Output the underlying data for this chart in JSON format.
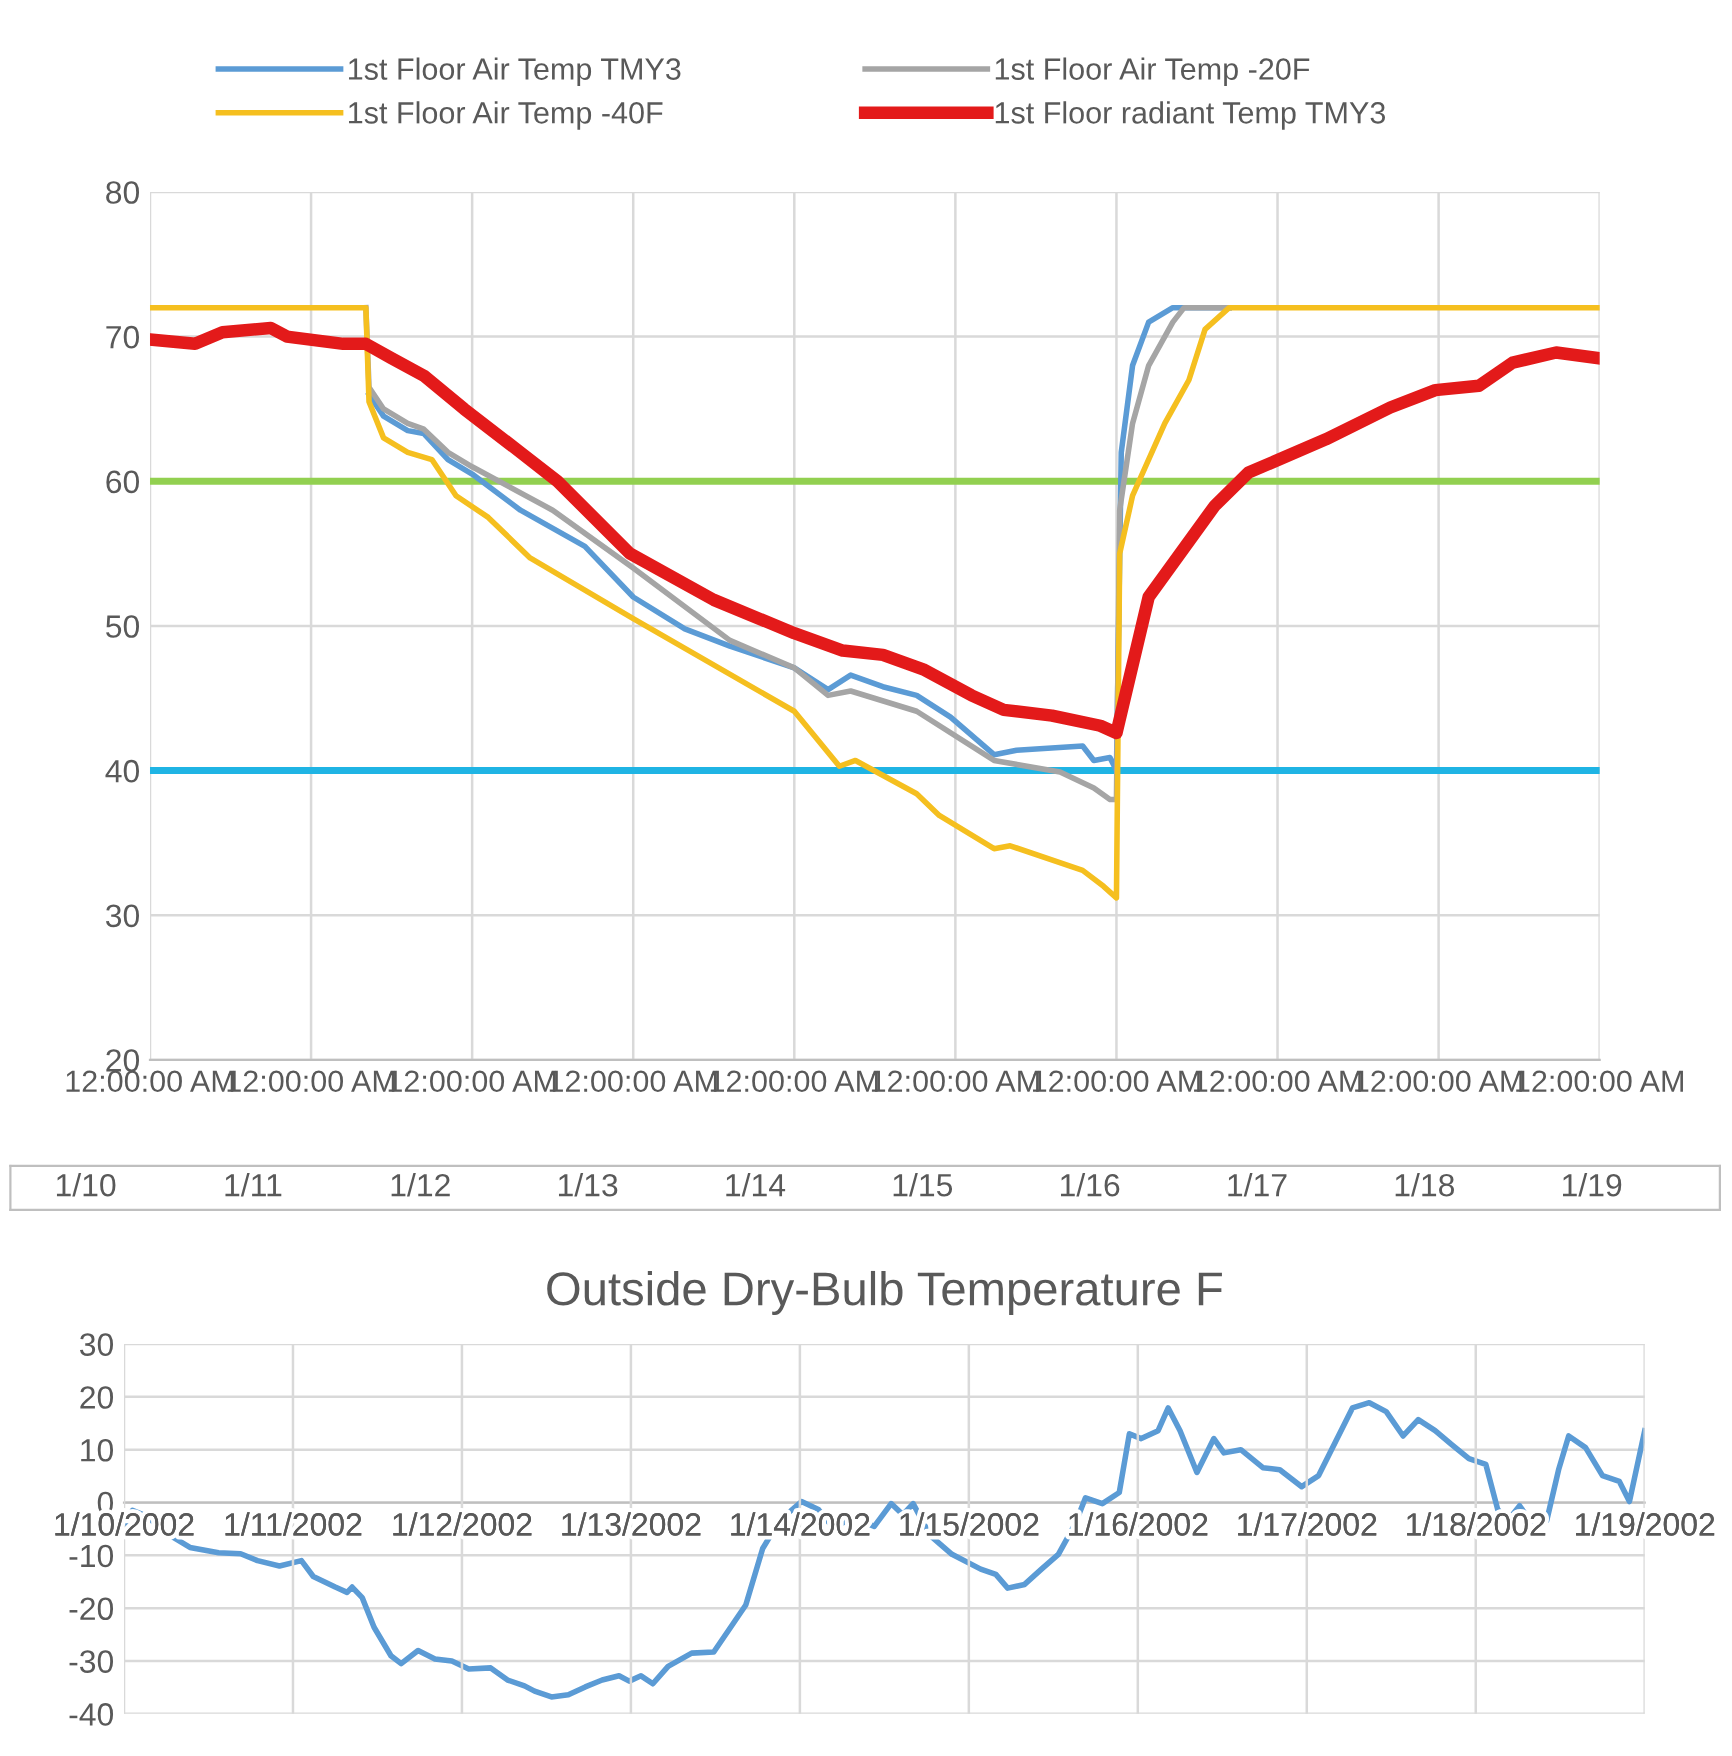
{
  "chart_data": [
    {
      "type": "line",
      "xlim": [
        "2002-01-10T00:00",
        "2002-01-19T00:00"
      ],
      "xticks": [
        {
          "value": "2002-01-10T00:00",
          "label": "12:00:00 AM"
        },
        {
          "value": "2002-01-11T00:00",
          "label": "12:00:00 AM"
        },
        {
          "value": "2002-01-12T00:00",
          "label": "12:00:00 AM"
        },
        {
          "value": "2002-01-13T00:00",
          "label": "12:00:00 AM"
        },
        {
          "value": "2002-01-14T00:00",
          "label": "12:00:00 AM"
        },
        {
          "value": "2002-01-15T00:00",
          "label": "12:00:00 AM"
        },
        {
          "value": "2002-01-16T00:00",
          "label": "12:00:00 AM"
        },
        {
          "value": "2002-01-17T00:00",
          "label": "12:00:00 AM"
        },
        {
          "value": "2002-01-18T00:00",
          "label": "12:00:00 AM"
        },
        {
          "value": "2002-01-19T00:00",
          "label": "12:00:00 AM"
        }
      ],
      "ylim": [
        20,
        80
      ],
      "yticks": [
        20,
        30,
        40,
        50,
        60,
        70,
        80
      ],
      "grid": true,
      "legend": "top",
      "ref_lines": [
        {
          "axis": "y",
          "value": 60,
          "color": "#92d050"
        },
        {
          "axis": "y",
          "value": 40,
          "color": "#1fb4e4"
        }
      ],
      "series": [
        {
          "name": "1st Floor Air Temp TMY3",
          "color": "#5b9bd5",
          "x": [
            "2002-01-11T08:38",
            "2002-01-11T10:48",
            "2002-01-11T14:24",
            "2002-01-11T16:48",
            "2002-01-11T20:24",
            "2002-01-12T00:00",
            "2002-01-12T07:12",
            "2002-01-12T16:48",
            "2002-01-13T00:00",
            "2002-01-13T07:41",
            "2002-01-13T14:24",
            "2002-01-14T00:00",
            "2002-01-14T05:02",
            "2002-01-14T08:24",
            "2002-01-14T13:12",
            "2002-01-14T18:14",
            "2002-01-14T23:17",
            "2002-01-15T05:46",
            "2002-01-15T09:07",
            "2002-01-15T18:58",
            "2002-01-15T20:38",
            "2002-01-15T23:02",
            "2002-01-16T00:00",
            "2002-01-16T00:43",
            "2002-01-16T02:24",
            "2002-01-16T04:48",
            "2002-01-16T08:24",
            "2002-01-16T16:48"
          ],
          "values": [
            66,
            64.5,
            63.5,
            63.3,
            61.5,
            60.5,
            58,
            55.5,
            52,
            49.8,
            48.6,
            47.1,
            45.6,
            46.6,
            45.8,
            45.2,
            43.7,
            41.1,
            41.4,
            41.7,
            40.7,
            40.9,
            40,
            62,
            68,
            71,
            72,
            72
          ]
        },
        {
          "name": "1st Floor Air Temp -20F",
          "color": "#a5a5a5",
          "x": [
            "2002-01-11T08:10",
            "2002-01-11T08:38",
            "2002-01-11T10:48",
            "2002-01-11T14:24",
            "2002-01-11T16:48",
            "2002-01-11T20:24",
            "2002-01-12T00:00",
            "2002-01-12T12:00",
            "2002-01-13T00:00",
            "2002-01-13T14:24",
            "2002-01-14T00:00",
            "2002-01-14T05:02",
            "2002-01-14T08:24",
            "2002-01-14T18:14",
            "2002-01-15T05:46",
            "2002-01-15T15:36",
            "2002-01-15T20:38",
            "2002-01-15T23:02",
            "2002-01-16T00:00",
            "2002-01-16T00:29",
            "2002-01-16T02:24",
            "2002-01-16T04:48",
            "2002-01-16T08:24",
            "2002-01-16T10:05",
            "2002-01-16T16:48"
          ],
          "values": [
            72,
            66.5,
            65,
            64,
            63.6,
            62,
            61,
            58,
            54,
            49,
            47.1,
            45.2,
            45.5,
            44.1,
            40.7,
            39.9,
            38.8,
            38,
            38,
            58,
            64,
            68,
            71,
            72,
            72
          ]
        },
        {
          "name": "1st Floor Air Temp -40F",
          "color": "#f5bf1f",
          "x": [
            "2002-01-10T00:00",
            "2002-01-11T08:10",
            "2002-01-11T08:38",
            "2002-01-11T10:48",
            "2002-01-11T14:24",
            "2002-01-11T18:00",
            "2002-01-11T21:36",
            "2002-01-12T02:24",
            "2002-01-12T08:38",
            "2002-01-13T00:00",
            "2002-01-14T00:00",
            "2002-01-14T06:43",
            "2002-01-14T09:07",
            "2002-01-14T18:14",
            "2002-01-14T21:36",
            "2002-01-15T05:46",
            "2002-01-15T08:10",
            "2002-01-15T18:58",
            "2002-01-15T22:05",
            "2002-01-16T00:00",
            "2002-01-16T00:29",
            "2002-01-16T02:24",
            "2002-01-16T07:12",
            "2002-01-16T10:48",
            "2002-01-16T13:12",
            "2002-01-16T16:48",
            "2002-01-19T00:00"
          ],
          "values": [
            72,
            72,
            65.5,
            63,
            62,
            61.5,
            59,
            57.5,
            54.7,
            50.5,
            44.1,
            40.3,
            40.7,
            38.4,
            36.9,
            34.6,
            34.8,
            33.1,
            32,
            31.2,
            55,
            59,
            64,
            67,
            70.5,
            72,
            72
          ]
        },
        {
          "name": "1st Floor radiant Temp TMY3",
          "color": "#e31a1a",
          "x": [
            "2002-01-10T00:00",
            "2002-01-10T06:43",
            "2002-01-10T10:48",
            "2002-01-10T18:00",
            "2002-01-10T20:24",
            "2002-01-11T04:48",
            "2002-01-11T08:10",
            "2002-01-11T12:00",
            "2002-01-11T16:48",
            "2002-01-11T22:48",
            "2002-01-12T07:12",
            "2002-01-12T12:43",
            "2002-01-12T23:31",
            "2002-01-13T12:00",
            "2002-01-14T00:00",
            "2002-01-14T07:12",
            "2002-01-14T13:12",
            "2002-01-14T19:12",
            "2002-01-15T02:24",
            "2002-01-15T07:12",
            "2002-01-15T14:24",
            "2002-01-15T21:36",
            "2002-01-16T00:00",
            "2002-01-16T04:48",
            "2002-01-16T14:38",
            "2002-01-16T19:41",
            "2002-01-17T07:12",
            "2002-01-17T16:48",
            "2002-01-17T23:31",
            "2002-01-18T06:00",
            "2002-01-18T11:02",
            "2002-01-18T17:31",
            "2002-01-19T00:00"
          ],
          "values": [
            69.8,
            69.5,
            70.3,
            70.6,
            70,
            69.5,
            69.5,
            68.5,
            67.3,
            65,
            62,
            60,
            55,
            51.8,
            49.5,
            48.3,
            48,
            47,
            45.2,
            44.2,
            43.8,
            43.1,
            42.6,
            52,
            58.3,
            60.6,
            62.9,
            65.1,
            66.3,
            66.6,
            68.2,
            68.9,
            68.5
          ]
        }
      ]
    },
    {
      "type": "other",
      "annotations": [
        "1/10",
        "1/11",
        "1/12",
        "1/13",
        "1/14",
        "1/15",
        "1/16",
        "1/17",
        "1/18",
        "1/19"
      ]
    },
    {
      "type": "line",
      "title": "Outside Dry-Bulb Temperature F",
      "xlim": [
        "2002-01-10T00:00",
        "2002-01-19T00:00"
      ],
      "xticks": [
        {
          "value": "2002-01-10",
          "label": "1/10/2002"
        },
        {
          "value": "2002-01-11",
          "label": "1/11/2002"
        },
        {
          "value": "2002-01-12",
          "label": "1/12/2002"
        },
        {
          "value": "2002-01-13",
          "label": "1/13/2002"
        },
        {
          "value": "2002-01-14",
          "label": "1/14/2002"
        },
        {
          "value": "2002-01-15",
          "label": "1/15/2002"
        },
        {
          "value": "2002-01-16",
          "label": "1/16/2002"
        },
        {
          "value": "2002-01-17",
          "label": "1/17/2002"
        },
        {
          "value": "2002-01-18",
          "label": "1/18/2002"
        },
        {
          "value": "2002-01-19",
          "label": "1/19/2002"
        }
      ],
      "ylim": [
        -40,
        30
      ],
      "yticks": [
        -40,
        -30,
        -20,
        -10,
        0,
        10,
        20,
        30
      ],
      "grid": true,
      "series": [
        {
          "color": "#5b9bd5",
          "x": [
            "2002-01-10T00:00",
            "2002-01-10T01:12",
            "2002-01-10T03:07",
            "2002-01-10T06:14",
            "2002-01-10T09:22",
            "2002-01-10T13:26",
            "2002-01-10T16:34",
            "2002-01-10T18:58",
            "2002-01-10T22:05",
            "2002-01-11T01:12",
            "2002-01-11T02:53",
            "2002-01-11T06:00",
            "2002-01-11T07:41",
            "2002-01-11T08:24",
            "2002-01-11T09:50",
            "2002-01-11T11:31",
            "2002-01-11T13:55",
            "2002-01-11T15:22",
            "2002-01-11T17:46",
            "2002-01-11T20:10",
            "2002-01-11T22:34",
            "2002-01-12T00:58",
            "2002-01-12T04:05",
            "2002-01-12T06:29",
            "2002-01-12T08:53",
            "2002-01-12T10:19",
            "2002-01-12T12:43",
            "2002-01-12T15:07",
            "2002-01-12T17:31",
            "2002-01-12T19:55",
            "2002-01-12T22:19",
            "2002-01-12T23:46",
            "2002-01-13T01:26",
            "2002-01-13T03:07",
            "2002-01-13T05:17",
            "2002-01-13T08:38",
            "2002-01-13T11:46",
            "2002-01-13T14:10",
            "2002-01-13T16:19",
            "2002-01-13T18:43",
            "2002-01-13T21:07",
            "2002-01-14T00:14",
            "2002-01-14T02:38",
            "2002-01-14T04:48",
            "2002-01-14T07:26",
            "2002-01-14T10:34",
            "2002-01-14T12:58",
            "2002-01-14T14:38",
            "2002-01-14T16:05",
            "2002-01-14T18:29",
            "2002-01-14T21:36",
            "2002-01-15T01:41",
            "2002-01-15T03:50",
            "2002-01-15T05:31",
            "2002-01-15T07:55",
            "2002-01-15T10:19",
            "2002-01-15T12:43",
            "2002-01-15T15:07",
            "2002-01-15T16:34",
            "2002-01-15T18:58",
            "2002-01-15T21:22",
            "2002-01-15T22:48",
            "2002-01-16T00:29",
            "2002-01-16T02:53",
            "2002-01-16T04:19",
            "2002-01-16T06:00",
            "2002-01-16T08:24",
            "2002-01-16T10:48",
            "2002-01-16T12:14",
            "2002-01-16T14:38",
            "2002-01-16T17:46",
            "2002-01-16T20:10",
            "2002-01-16T23:17",
            "2002-01-17T01:41",
            "2002-01-17T04:05",
            "2002-01-17T06:29",
            "2002-01-17T08:53",
            "2002-01-17T11:17",
            "2002-01-17T13:41",
            "2002-01-17T15:50",
            "2002-01-17T18:14",
            "2002-01-17T20:38",
            "2002-01-17T23:02",
            "2002-01-18T01:26",
            "2002-01-18T03:07",
            "2002-01-18T04:34",
            "2002-01-18T06:14",
            "2002-01-18T07:41",
            "2002-01-18T10:05",
            "2002-01-18T11:46",
            "2002-01-18T13:12",
            "2002-01-18T15:36",
            "2002-01-18T18:00",
            "2002-01-18T20:24",
            "2002-01-18T21:50",
            "2002-01-19T00:00"
          ],
          "values": [
            -5,
            -1.5,
            -2.5,
            -6,
            -8.5,
            -9.5,
            -9.7,
            -11,
            -12,
            -11,
            -14,
            -16,
            -17,
            -16,
            -18,
            -23.6,
            -29,
            -30.5,
            -28,
            -29.6,
            -30,
            -31.5,
            -31.3,
            -33.6,
            -34.7,
            -35.7,
            -36.8,
            -36.4,
            -34.9,
            -33.6,
            -32.8,
            -33.8,
            -32.8,
            -34.3,
            -31,
            -28.5,
            -28.3,
            -23.6,
            -19.4,
            -8.7,
            -3.4,
            0.2,
            -1.3,
            -4.9,
            -2.8,
            -4.5,
            -0.2,
            -2.3,
            -0.2,
            -6.2,
            -9.8,
            -12.6,
            -13.6,
            -16.2,
            -15.5,
            -12.6,
            -9.8,
            -4,
            0.9,
            -0.2,
            1.9,
            13,
            12.1,
            13.6,
            17.9,
            13.6,
            5.7,
            12.1,
            9.4,
            10,
            6.6,
            6.2,
            3,
            5.1,
            11.5,
            17.9,
            18.9,
            17.2,
            12.6,
            15.7,
            13.6,
            10.9,
            8.3,
            7.2,
            -1.3,
            -3.4,
            -0.6,
            -3.4,
            -3.4,
            6.2,
            12.6,
            10.4,
            5.1,
            4,
            0.2,
            13.6
          ]
        }
      ]
    }
  ]
}
